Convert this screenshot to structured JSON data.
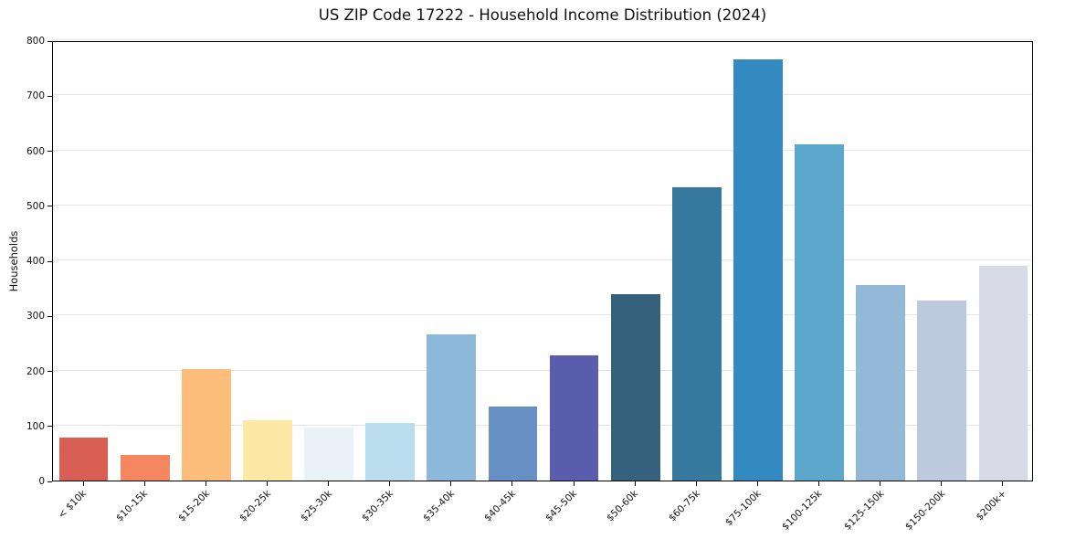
{
  "chart_data": {
    "type": "bar",
    "title": "US ZIP Code 17222 - Household Income Distribution (2024)",
    "xlabel": "",
    "ylabel": "Households",
    "ylim": [
      0,
      800
    ],
    "yticks": [
      0,
      100,
      200,
      300,
      400,
      500,
      600,
      700,
      800
    ],
    "grid": "horizontal",
    "legend_position": "none",
    "categories": [
      "< $10k",
      "$10-15k",
      "$15-20k",
      "$20-25k",
      "$25-30k",
      "$30-35k",
      "$35-40k",
      "$40-45k",
      "$45-50k",
      "$50-60k",
      "$60-75k",
      "$75-100k",
      "$100-125k",
      "$125-150k",
      "$150-200k",
      "$200k+"
    ],
    "values": [
      78,
      46,
      202,
      110,
      96,
      105,
      266,
      134,
      227,
      338,
      533,
      766,
      610,
      355,
      327,
      390
    ],
    "bar_colors": [
      "#d95f55",
      "#f4875f",
      "#fcbd7b",
      "#fde8a6",
      "#e9f2f7",
      "#b9ddec",
      "#8cb8d9",
      "#6791c5",
      "#5a5dad",
      "#35617c",
      "#37799f",
      "#328ac1",
      "#5da7cc",
      "#93b8d8",
      "#bdcade",
      "#d8dae8"
    ],
    "bar_width_ratio": 0.8,
    "axis_color": "#000000",
    "gridline_color": "#e6e6e6",
    "background_color": "#ffffff"
  }
}
